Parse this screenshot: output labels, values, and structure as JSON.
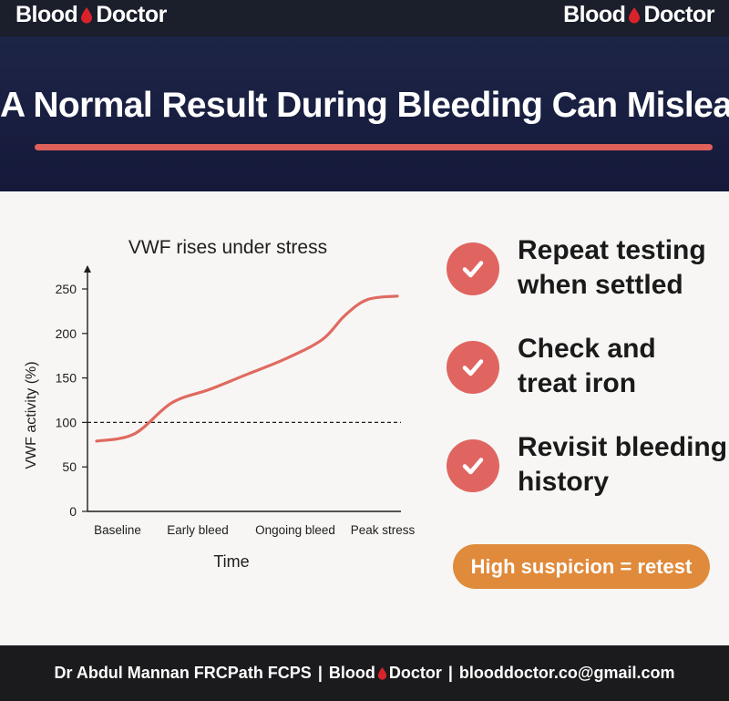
{
  "topbar": {
    "brand_left": "Blood",
    "brand_right": "Doctor"
  },
  "header": {
    "title": "A Normal Result During Bleeding Can Mislead"
  },
  "chart_data": {
    "type": "line",
    "title": "VWF rises under stress",
    "xlabel": "Time",
    "ylabel": "VWF activity (%)",
    "categories": [
      "Baseline",
      "Early bleed",
      "Ongoing bleed",
      "Peak stress"
    ],
    "x": [
      0,
      0.5,
      1,
      1.5,
      2,
      2.5,
      3,
      3.3,
      3.6,
      4
    ],
    "values": [
      79,
      87,
      122,
      137,
      154,
      171,
      193,
      220,
      238,
      242
    ],
    "yticks": [
      0,
      50,
      100,
      150,
      200,
      250
    ],
    "ylim": [
      0,
      260
    ],
    "reference_line": 100,
    "grid": false,
    "line_color": "#e06a60"
  },
  "checklist": [
    {
      "line1": "Repeat testing",
      "line2": "when settled",
      "icon": "check-icon"
    },
    {
      "line1": "Check and",
      "line2": "treat iron",
      "icon": "check-icon"
    },
    {
      "line1": "Revisit bleeding",
      "line2": "history",
      "icon": "check-icon"
    }
  ],
  "callout": "High suspicion = retest",
  "footer": {
    "author": "Dr Abdul Mannan FRCPath FCPS",
    "brand_left": "Blood",
    "brand_right": "Doctor",
    "email": "blooddoctor.co@gmail.com",
    "separator": "|"
  },
  "colors": {
    "accent_red": "#e06560",
    "accent_orange": "#e08a3b",
    "navy": "#1d2547"
  }
}
